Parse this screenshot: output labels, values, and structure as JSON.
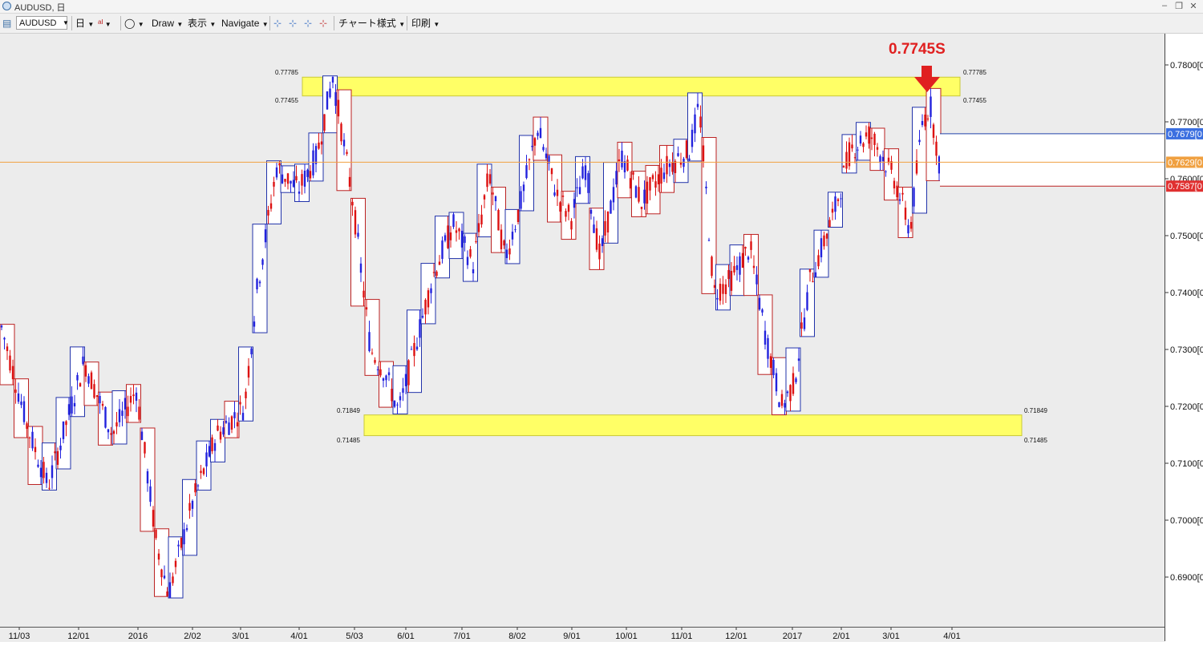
{
  "window": {
    "title": "AUDUSD, 日"
  },
  "toolbar": {
    "symbol": "AUDUSD",
    "timeframe": "日",
    "draw_label": "Draw",
    "display_label": "表示",
    "navigate_label": "Navigate",
    "chart_style_label": "チャート様式",
    "print_label": "印刷"
  },
  "chart": {
    "type": "candlestick",
    "annotation": "0.7745S",
    "upper_zone_high_label": "0.77785",
    "upper_zone_low_label": "0.77455",
    "lower_zone_high_label": "0.71849",
    "lower_zone_low_label": "0.71485",
    "price_ticks": [
      "0.7800[0",
      "0.7700[0",
      "0.7600[0",
      "0.7500[0",
      "0.7400[0",
      "0.7300[0",
      "0.7200[0",
      "0.7100[0",
      "0.7000[0",
      "0.6900[0"
    ],
    "current_price_label": "0.7629[0",
    "upper_band_label": "0.7679[0",
    "lower_band_label": "0.7587[0",
    "time_labels": [
      "11/03",
      "12/01",
      "2016",
      "2/02",
      "3/01",
      "4/01",
      "5/03",
      "6/01",
      "7/01",
      "8/02",
      "9/01",
      "10/01",
      "11/01",
      "12/01",
      "2017",
      "2/01",
      "3/01",
      "4/01"
    ],
    "colors": {
      "up": "#2222dd",
      "down": "#dd1111",
      "zone": "#ffff66",
      "current_line": "#f0a040",
      "annotation": "#e02020"
    }
  }
}
